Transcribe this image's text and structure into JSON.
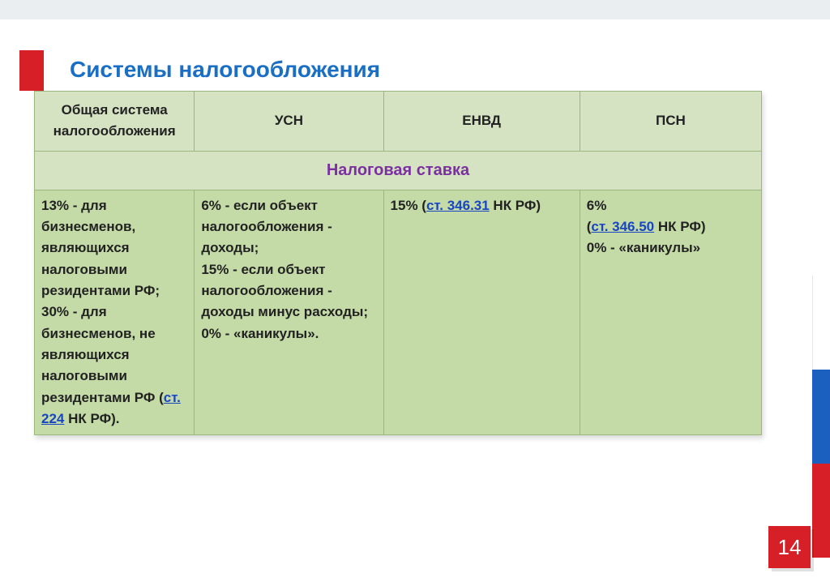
{
  "title": "Системы  налогообложения",
  "table": {
    "headers": [
      "Общая система налогообложения",
      "УСН",
      "ЕНВД",
      "ПСН"
    ],
    "section_label": "Налоговая ставка",
    "col_widths": [
      "22%",
      "26%",
      "27%",
      "25%"
    ],
    "header_bg": "#d5e3c3",
    "body_bg": "#c5dba7",
    "border_color": "#9bb77d",
    "section_text_color": "#7b2fa0",
    "cells": {
      "c0": {
        "pre": "13% - для бизнесменов, являющихся налоговыми резидентами РФ;\n30% - для бизнесменов, не являющихся налоговыми резидентами РФ (",
        "link": "ст. 224",
        "post": " НК РФ)."
      },
      "c1": {
        "text": "6% - если объект налогообложения - доходы;\n15% - если объект налогообложения - доходы минус расходы;\n0% - «каникулы»."
      },
      "c2": {
        "pre": "15% (",
        "link": "ст. 346.31",
        "post": " НК РФ)"
      },
      "c3": {
        "line1": "6%",
        "pre": " (",
        "link": "ст. 346.50",
        "post": " НК РФ)",
        "line3": " 0% - «каникулы»"
      }
    }
  },
  "colors": {
    "title": "#1a6fc4",
    "accent_red": "#d61f26",
    "flag_blue": "#1b5fbf",
    "link": "#1846c2",
    "top_strip": "#eaeef1"
  },
  "page_number": "14"
}
